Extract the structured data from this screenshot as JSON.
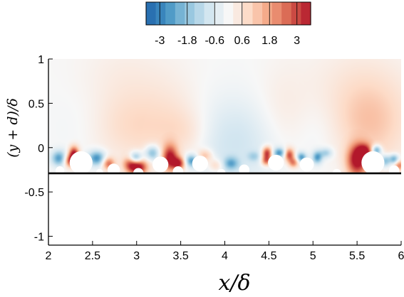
{
  "chart_data": {
    "type": "heatmap",
    "title": "",
    "xlabel": "x/δ",
    "ylabel": "(y + d)/δ",
    "xlim": [
      2,
      6
    ],
    "ylim": [
      -1.1,
      1
    ],
    "x_ticks": [
      "2",
      "2.5",
      "3",
      "3.5",
      "4",
      "4.5",
      "5",
      "5.5",
      "6"
    ],
    "y_ticks": [
      "-1",
      "-0.5",
      "0",
      "0.5",
      "1"
    ],
    "colorbar": {
      "range": [
        -3.6,
        3.6
      ],
      "ticks": [
        "-3",
        "-1.8",
        "-0.6",
        "0.6",
        "1.8",
        "3"
      ],
      "colors": [
        "#2166ac",
        "#4393c3",
        "#92c5de",
        "#d1e5f0",
        "#f7f7f7",
        "#fddbc7",
        "#f4a582",
        "#d6604d",
        "#b2182b"
      ]
    },
    "wall_line_y": -0.29,
    "particles": [
      {
        "x": 2.13,
        "y": -0.26,
        "r": 0.05
      },
      {
        "x": 2.37,
        "y": -0.17,
        "r": 0.13
      },
      {
        "x": 2.58,
        "y": -0.28,
        "r": 0.04
      },
      {
        "x": 2.74,
        "y": -0.25,
        "r": 0.07
      },
      {
        "x": 3.02,
        "y": -0.29,
        "r": 0.06
      },
      {
        "x": 3.27,
        "y": -0.19,
        "r": 0.09
      },
      {
        "x": 3.47,
        "y": -0.27,
        "r": 0.06
      },
      {
        "x": 3.72,
        "y": -0.18,
        "r": 0.09
      },
      {
        "x": 3.96,
        "y": -0.29,
        "r": 0.05
      },
      {
        "x": 4.22,
        "y": -0.25,
        "r": 0.06
      },
      {
        "x": 4.58,
        "y": -0.17,
        "r": 0.09
      },
      {
        "x": 4.93,
        "y": -0.19,
        "r": 0.08
      },
      {
        "x": 5.27,
        "y": -0.29,
        "r": 0.05
      },
      {
        "x": 5.68,
        "y": -0.17,
        "r": 0.13
      },
      {
        "x": 5.92,
        "y": -0.26,
        "r": 0.06
      }
    ],
    "blobs": [
      {
        "x": 2.85,
        "y": 0.55,
        "sx": 0.35,
        "sy": 0.45,
        "v": 0.5
      },
      {
        "x": 5.5,
        "y": 0.6,
        "sx": 0.45,
        "sy": 0.4,
        "v": 0.5
      },
      {
        "x": 3.4,
        "y": 0.4,
        "sx": 0.25,
        "sy": 0.35,
        "v": 0.35
      },
      {
        "x": 4.65,
        "y": 0.4,
        "sx": 0.2,
        "sy": 0.35,
        "v": 0.35
      },
      {
        "x": 4.1,
        "y": 0.05,
        "sx": 0.35,
        "sy": 0.35,
        "v": -0.9
      },
      {
        "x": 2.5,
        "y": 0.25,
        "sx": 0.3,
        "sy": 0.3,
        "v": -0.35
      },
      {
        "x": 5.1,
        "y": 0.2,
        "sx": 0.2,
        "sy": 0.3,
        "v": -0.3
      },
      {
        "x": 2.9,
        "y": 0.2,
        "sx": 0.35,
        "sy": 0.25,
        "v": 0.6
      },
      {
        "x": 5.65,
        "y": 0.25,
        "sx": 0.3,
        "sy": 0.35,
        "v": 1.0
      },
      {
        "x": 3.55,
        "y": 0.15,
        "sx": 0.2,
        "sy": 0.2,
        "v": 0.6
      },
      {
        "x": 2.29,
        "y": -0.07,
        "sx": 0.04,
        "sy": 0.06,
        "v": 3.6
      },
      {
        "x": 2.25,
        "y": -0.15,
        "sx": 0.05,
        "sy": 0.05,
        "v": 3.0
      },
      {
        "x": 2.12,
        "y": -0.12,
        "sx": 0.06,
        "sy": 0.06,
        "v": -2.5
      },
      {
        "x": 2.55,
        "y": -0.12,
        "sx": 0.07,
        "sy": 0.06,
        "v": -2.8
      },
      {
        "x": 2.68,
        "y": -0.18,
        "sx": 0.05,
        "sy": 0.05,
        "v": 2.5
      },
      {
        "x": 2.93,
        "y": -0.19,
        "sx": 0.06,
        "sy": 0.06,
        "v": 2.2
      },
      {
        "x": 3.02,
        "y": -0.22,
        "sx": 0.07,
        "sy": 0.06,
        "v": 3.6
      },
      {
        "x": 2.99,
        "y": -0.12,
        "sx": 0.05,
        "sy": 0.05,
        "v": -2.8
      },
      {
        "x": 3.18,
        "y": -0.06,
        "sx": 0.06,
        "sy": 0.06,
        "v": -2.2
      },
      {
        "x": 3.38,
        "y": -0.12,
        "sx": 0.06,
        "sy": 0.1,
        "v": 3.6
      },
      {
        "x": 3.48,
        "y": -0.18,
        "sx": 0.05,
        "sy": 0.05,
        "v": 3.0
      },
      {
        "x": 3.62,
        "y": -0.15,
        "sx": 0.05,
        "sy": 0.05,
        "v": -2.5
      },
      {
        "x": 3.78,
        "y": -0.09,
        "sx": 0.06,
        "sy": 0.05,
        "v": 1.5
      },
      {
        "x": 3.9,
        "y": -0.2,
        "sx": 0.06,
        "sy": 0.05,
        "v": 1.2
      },
      {
        "x": 4.07,
        "y": -0.18,
        "sx": 0.06,
        "sy": 0.05,
        "v": -1.8
      },
      {
        "x": 4.33,
        "y": -0.1,
        "sx": 0.05,
        "sy": 0.04,
        "v": -1.0
      },
      {
        "x": 4.48,
        "y": -0.06,
        "sx": 0.04,
        "sy": 0.05,
        "v": 3.4
      },
      {
        "x": 4.47,
        "y": -0.15,
        "sx": 0.04,
        "sy": 0.04,
        "v": 2.5
      },
      {
        "x": 4.62,
        "y": -0.06,
        "sx": 0.05,
        "sy": 0.04,
        "v": -2.5
      },
      {
        "x": 4.73,
        "y": -0.08,
        "sx": 0.04,
        "sy": 0.05,
        "v": 3.0
      },
      {
        "x": 4.78,
        "y": -0.17,
        "sx": 0.04,
        "sy": 0.04,
        "v": 2.2
      },
      {
        "x": 4.87,
        "y": -0.11,
        "sx": 0.04,
        "sy": 0.04,
        "v": -2.5
      },
      {
        "x": 5.05,
        "y": -0.11,
        "sx": 0.04,
        "sy": 0.05,
        "v": -2.5
      },
      {
        "x": 5.15,
        "y": -0.06,
        "sx": 0.05,
        "sy": 0.04,
        "v": -1.5
      },
      {
        "x": 5.5,
        "y": -0.15,
        "sx": 0.08,
        "sy": 0.12,
        "v": 3.6
      },
      {
        "x": 5.58,
        "y": -0.05,
        "sx": 0.06,
        "sy": 0.06,
        "v": 3.0
      },
      {
        "x": 5.72,
        "y": -0.03,
        "sx": 0.04,
        "sy": 0.04,
        "v": -3.0
      },
      {
        "x": 5.82,
        "y": -0.15,
        "sx": 0.04,
        "sy": 0.05,
        "v": -2.2
      },
      {
        "x": 5.92,
        "y": -0.13,
        "sx": 0.04,
        "sy": 0.04,
        "v": -2.5
      },
      {
        "x": 5.98,
        "y": -0.2,
        "sx": 0.04,
        "sy": 0.04,
        "v": 2.0
      }
    ]
  }
}
